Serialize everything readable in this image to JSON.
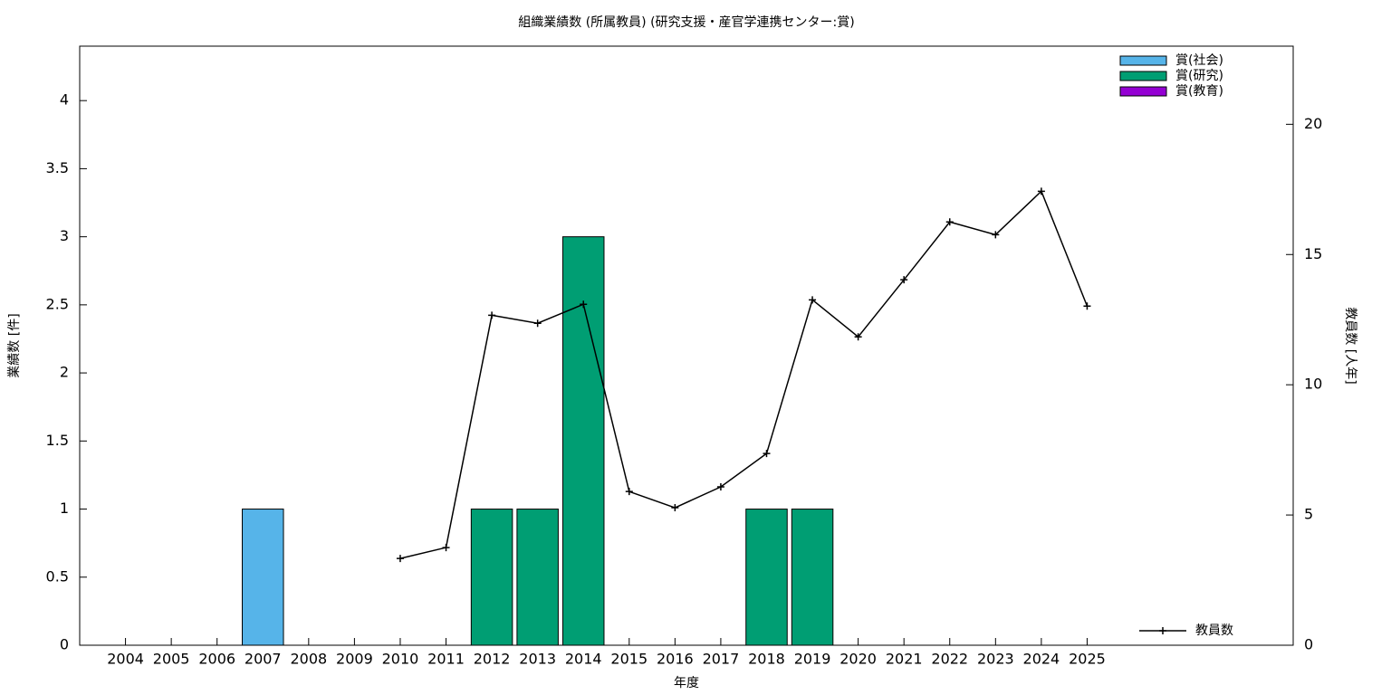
{
  "chart_data": {
    "type": "bar",
    "title": "組織業績数 (所属教員) (研究支援・産官学連携センター:賞)",
    "xlabel": "年度",
    "ylabel": "業績数 [件]",
    "y2label": "教員数 [人年]",
    "x": [
      2004,
      2005,
      2006,
      2007,
      2008,
      2009,
      2010,
      2011,
      2012,
      2013,
      2014,
      2015,
      2016,
      2017,
      2018,
      2019,
      2020,
      2021,
      2022,
      2023,
      2024,
      2025
    ],
    "xlim": [
      2003,
      2029.5
    ],
    "ylim": [
      0,
      4.4
    ],
    "yticks": [
      0,
      0.5,
      1,
      1.5,
      2,
      2.5,
      3,
      3.5,
      4
    ],
    "y2lim": [
      0,
      23
    ],
    "y2ticks": [
      0,
      5,
      10,
      15,
      20
    ],
    "bar_width": 0.9,
    "stacked": true,
    "legend": "top-right",
    "line_legend": "bottom-right",
    "series": [
      {
        "name": "賞(社会)",
        "type": "bar",
        "color": "#56b4e9",
        "values": [
          0,
          0,
          0,
          1,
          0,
          0,
          0,
          0,
          0,
          0,
          0,
          0,
          0,
          0,
          0,
          0,
          0,
          0,
          0,
          0,
          0,
          0
        ]
      },
      {
        "name": "賞(研究)",
        "type": "bar",
        "color": "#009e73",
        "values": [
          0,
          0,
          0,
          0,
          0,
          0,
          0,
          0,
          1,
          1,
          3,
          0,
          0,
          0,
          1,
          1,
          0,
          0,
          0,
          0,
          0,
          0
        ]
      },
      {
        "name": "賞(教育)",
        "type": "bar",
        "color": "#9400d3",
        "values": [
          0,
          0,
          0,
          0,
          0,
          0,
          0,
          0,
          0,
          0,
          0,
          0,
          0,
          0,
          0,
          0,
          0,
          0,
          0,
          0,
          0,
          0
        ]
      },
      {
        "name": "教員数",
        "type": "line",
        "axis": "y2",
        "color": "#000000",
        "values": [
          null,
          null,
          null,
          null,
          null,
          null,
          3.33,
          3.75,
          12.67,
          12.36,
          13.09,
          5.9,
          5.28,
          6.08,
          7.36,
          13.26,
          11.84,
          14.03,
          16.25,
          15.76,
          17.43,
          13.02
        ]
      }
    ]
  }
}
